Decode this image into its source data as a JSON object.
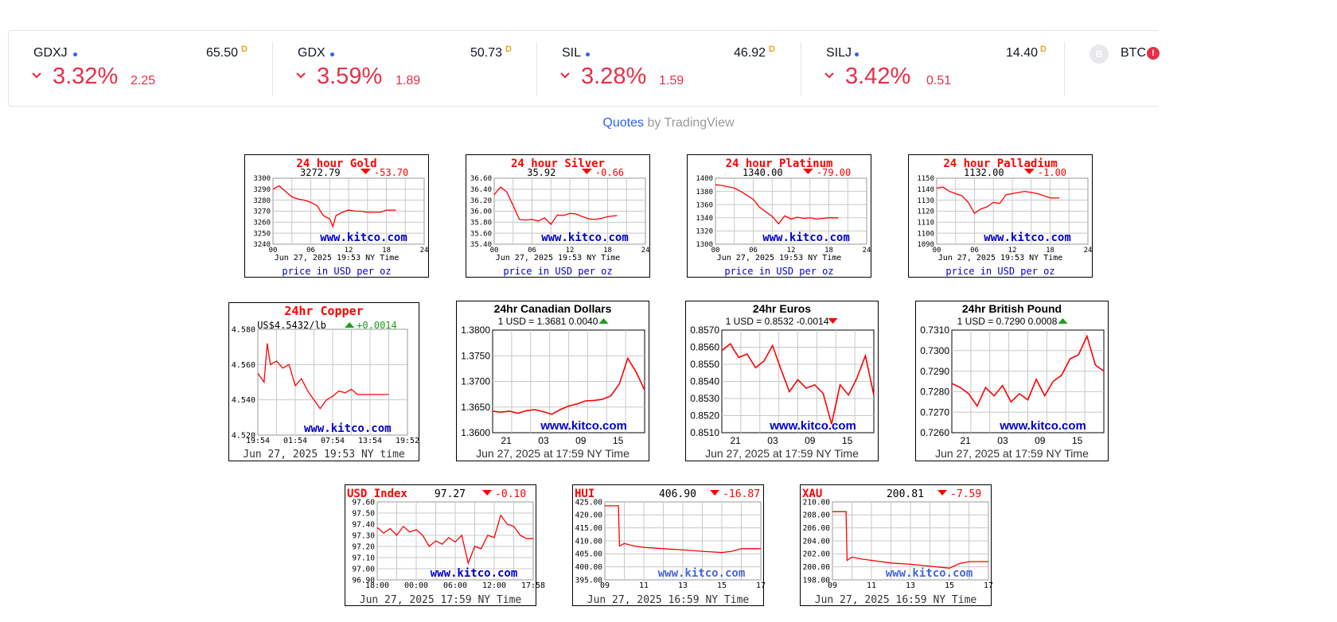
{
  "ticker": [
    {
      "symbol": "GDXJ",
      "price": "65.50",
      "flag": "D",
      "percent": "3.32%",
      "change": "2.25"
    },
    {
      "symbol": "GDX",
      "price": "50.73",
      "flag": "D",
      "percent": "3.59%",
      "change": "1.89"
    },
    {
      "symbol": "SIL",
      "price": "46.92",
      "flag": "D",
      "percent": "3.28%",
      "change": "1.59"
    },
    {
      "symbol": "SILJ",
      "price": "14.40",
      "flag": "D",
      "percent": "3.42%",
      "change": "0.51"
    },
    {
      "symbol": "BTC",
      "logo_letter": "B",
      "alert": "!"
    }
  ],
  "credit": {
    "link": "Quotes",
    "suffix": " by TradingView"
  },
  "colors": {
    "down": "#e53048",
    "line": "#ff0000",
    "watermark": "#0000cc",
    "tv_blue": "#2962ff"
  },
  "charts": [
    {
      "style": "kitco_metal",
      "title": "24 hour Gold",
      "price": "3272.79",
      "dir": "down",
      "delta": "-53.70",
      "y_ticks": [
        "3300",
        "3290",
        "3280",
        "3270",
        "3260",
        "3250",
        "3240"
      ],
      "x_ticks": [
        "00",
        "06",
        "12",
        "18",
        "24"
      ],
      "watermark": "www.kitco.com",
      "date_line": "Jun 27, 2025 19:53 NY Time",
      "footer": "price in USD per oz"
    },
    {
      "style": "kitco_metal",
      "title": "24 hour Silver",
      "price": "35.92",
      "dir": "down",
      "delta": "-0.66",
      "y_ticks": [
        "36.60",
        "36.40",
        "36.20",
        "36.00",
        "35.80",
        "35.60",
        "35.40"
      ],
      "x_ticks": [
        "00",
        "06",
        "12",
        "18",
        "24"
      ],
      "watermark": "www.kitco.com",
      "date_line": "Jun 27, 2025 19:53 NY Time",
      "footer": "price in USD per oz"
    },
    {
      "style": "kitco_metal",
      "title": "24 hour Platinum",
      "price": "1340.00",
      "dir": "down",
      "delta": "-79.00",
      "y_ticks": [
        "1400",
        "1380",
        "1360",
        "1340",
        "1320",
        "1300"
      ],
      "x_ticks": [
        "00",
        "06",
        "12",
        "18",
        "24"
      ],
      "watermark": "www.kitco.com",
      "date_line": "Jun 27, 2025 19:53 NY Time",
      "footer": "price in USD per oz"
    },
    {
      "style": "kitco_metal",
      "title": "24 hour Palladium",
      "price": "1132.00",
      "dir": "down",
      "delta": "-1.00",
      "y_ticks": [
        "1150",
        "1140",
        "1130",
        "1120",
        "1110",
        "1100",
        "1090"
      ],
      "x_ticks": [
        "00",
        "06",
        "12",
        "18",
        "24"
      ],
      "watermark": "www.kitco.com",
      "date_line": "Jun 27, 2025 19:53 NY Time",
      "footer": "price in USD per oz"
    },
    {
      "style": "kitco_copper",
      "title": "24hr Copper",
      "price": "US$4.5432/lb",
      "dir": "up",
      "delta": "+0.0014",
      "y_ticks": [
        "4.580",
        "4.560",
        "4.540",
        "4.520"
      ],
      "x_ticks": [
        "19:54",
        "01:54",
        "07:54",
        "13:54",
        "19:52"
      ],
      "watermark": "www.kitco.com",
      "date_line": "Jun 27, 2025 19:53 NY time"
    },
    {
      "style": "kitco_fx",
      "title": "24hr Canadian Dollars",
      "quote": "1 USD = 1.3681  0.0040",
      "dir": "up",
      "y_ticks": [
        "1.3800",
        "1.3750",
        "1.3700",
        "1.3650",
        "1.3600"
      ],
      "x_ticks": [
        "21",
        "03",
        "09",
        "15"
      ],
      "watermark": "www.kitco.com",
      "date_line": "Jun 27, 2025 at 17:59 NY Time"
    },
    {
      "style": "kitco_fx",
      "title": "24hr Euros",
      "quote": "1 USD = 0.8532  -0.0014",
      "dir": "down",
      "y_ticks": [
        "0.8570",
        "0.8560",
        "0.8550",
        "0.8540",
        "0.8530",
        "0.8520",
        "0.8510"
      ],
      "x_ticks": [
        "21",
        "03",
        "09",
        "15"
      ],
      "watermark": "www.kitco.com",
      "date_line": "Jun 27, 2025 at 17:59 NY Time"
    },
    {
      "style": "kitco_fx",
      "title": "24hr British Pound",
      "quote": "1 USD = 0.7290  0.0008",
      "dir": "up",
      "y_ticks": [
        "0.7310",
        "0.7300",
        "0.7290",
        "0.7280",
        "0.7270",
        "0.7260"
      ],
      "x_ticks": [
        "21",
        "03",
        "09",
        "15"
      ],
      "watermark": "www.kitco.com",
      "date_line": "Jun 27, 2025 at 17:59 NY Time"
    },
    {
      "style": "kitco_index",
      "title": "USD Index",
      "price": "97.27",
      "dir": "down",
      "delta": "-0.10",
      "y_ticks": [
        "97.60",
        "97.50",
        "97.40",
        "97.30",
        "97.20",
        "97.10",
        "97.00",
        "96.90"
      ],
      "x_ticks": [
        "18:00",
        "00:00",
        "06:00",
        "12:00",
        "17:58"
      ],
      "watermark": "www.kitco.com",
      "date_line": "Jun 27, 2025 17:59 NY Time"
    },
    {
      "style": "kitco_index",
      "title": "HUI",
      "price": "406.90",
      "dir": "down",
      "delta": "-16.87",
      "y_ticks": [
        "425.00",
        "420.00",
        "415.00",
        "410.00",
        "405.00",
        "400.00",
        "395.00"
      ],
      "x_ticks": [
        "09",
        "11",
        "13",
        "15",
        "17"
      ],
      "watermark": "www.kitco.com",
      "date_line": "Jun 27, 2025 16:59 NY Time"
    },
    {
      "style": "kitco_index",
      "title": "XAU",
      "price": "200.81",
      "dir": "down",
      "delta": "-7.59",
      "y_ticks": [
        "210.00",
        "208.00",
        "206.00",
        "204.00",
        "202.00",
        "200.00",
        "198.00"
      ],
      "x_ticks": [
        "09",
        "11",
        "13",
        "15",
        "17"
      ],
      "watermark": "www.kitco.com",
      "date_line": "Jun 27, 2025 16:59 NY Time"
    }
  ],
  "chart_data": [
    {
      "type": "line",
      "title": "24 hour Gold",
      "ylim": [
        3240,
        3300
      ],
      "xlim": [
        0,
        24
      ],
      "x": [
        0,
        1,
        2,
        3,
        4,
        5,
        6,
        7,
        8,
        9,
        9.5,
        10,
        11,
        12,
        13,
        14,
        15,
        16,
        17,
        18,
        19.5
      ],
      "values": [
        3290,
        3293,
        3288,
        3283,
        3281,
        3280,
        3278,
        3275,
        3266,
        3263,
        3256,
        3266,
        3269,
        3271,
        3270,
        3270,
        3269,
        3269,
        3269,
        3271,
        3271
      ]
    },
    {
      "type": "line",
      "title": "24 hour Silver",
      "ylim": [
        35.4,
        36.6
      ],
      "xlim": [
        0,
        24
      ],
      "x": [
        0,
        1,
        2,
        3,
        4,
        5,
        6,
        7,
        8,
        9,
        10,
        11,
        12,
        13,
        14,
        15,
        16,
        17,
        18,
        19.5
      ],
      "values": [
        36.3,
        36.44,
        36.35,
        36.1,
        35.85,
        35.84,
        35.85,
        35.82,
        35.88,
        35.76,
        35.93,
        35.92,
        35.96,
        35.95,
        35.9,
        35.86,
        35.85,
        35.87,
        35.9,
        35.92
      ]
    },
    {
      "type": "line",
      "title": "24 hour Platinum",
      "ylim": [
        1300,
        1400
      ],
      "xlim": [
        0,
        24
      ],
      "x": [
        0,
        1,
        2,
        3,
        4,
        5,
        6,
        7,
        8,
        9,
        10,
        11,
        12,
        13,
        14,
        15,
        16,
        17,
        18,
        19.5
      ],
      "values": [
        1390,
        1389,
        1387,
        1385,
        1380,
        1374,
        1368,
        1356,
        1349,
        1342,
        1331,
        1343,
        1338,
        1341,
        1339,
        1340,
        1338,
        1339,
        1340,
        1340
      ]
    },
    {
      "type": "line",
      "title": "24 hour Palladium",
      "ylim": [
        1090,
        1150
      ],
      "xlim": [
        0,
        24
      ],
      "x": [
        0,
        1,
        2,
        3,
        4,
        5,
        6,
        7,
        8,
        9,
        10,
        11,
        12,
        13,
        14,
        15,
        16,
        17,
        18,
        19.5
      ],
      "values": [
        1141,
        1142,
        1138,
        1136,
        1134,
        1128,
        1118,
        1122,
        1124,
        1128,
        1127,
        1135,
        1136,
        1137,
        1138,
        1137,
        1136,
        1134,
        1132,
        1132
      ]
    },
    {
      "type": "line",
      "title": "24hr Copper",
      "ylim": [
        4.52,
        4.58
      ],
      "xlim": [
        0,
        24
      ],
      "x": [
        0,
        1,
        1.5,
        2,
        3,
        4,
        5,
        6,
        7,
        8,
        9,
        10,
        11,
        12,
        13,
        14,
        15,
        16,
        17,
        18,
        19,
        20,
        21
      ],
      "values": [
        4.555,
        4.55,
        4.572,
        4.56,
        4.562,
        4.558,
        4.56,
        4.548,
        4.552,
        4.545,
        4.54,
        4.535,
        4.54,
        4.542,
        4.545,
        4.544,
        4.546,
        4.543,
        4.543,
        4.543,
        4.543,
        4.543,
        4.543
      ]
    },
    {
      "type": "line",
      "title": "24hr Canadian Dollars",
      "ylim": [
        1.36,
        1.38
      ],
      "xlim": [
        18,
        36
      ],
      "x": [
        18,
        19,
        20,
        21,
        22,
        23,
        24,
        25,
        26,
        27,
        28,
        29,
        30,
        31,
        32,
        33,
        34,
        35,
        36
      ],
      "values": [
        1.3642,
        1.364,
        1.3642,
        1.3638,
        1.3643,
        1.3645,
        1.3641,
        1.3636,
        1.3645,
        1.3652,
        1.3656,
        1.3662,
        1.3663,
        1.3665,
        1.3672,
        1.3695,
        1.3745,
        1.3718,
        1.3683
      ]
    },
    {
      "type": "line",
      "title": "24hr Euros",
      "ylim": [
        0.851,
        0.857
      ],
      "xlim": [
        18,
        36
      ],
      "x": [
        18,
        19,
        20,
        21,
        22,
        23,
        24,
        25,
        26,
        27,
        28,
        29,
        30,
        31,
        32,
        33,
        34,
        35,
        36
      ],
      "values": [
        0.8558,
        0.8562,
        0.8554,
        0.8556,
        0.8548,
        0.8552,
        0.8561,
        0.8547,
        0.8534,
        0.8541,
        0.8536,
        0.8538,
        0.8533,
        0.8515,
        0.8538,
        0.8532,
        0.8542,
        0.8555,
        0.8532
      ]
    },
    {
      "type": "line",
      "title": "24hr British Pound",
      "ylim": [
        0.726,
        0.731
      ],
      "xlim": [
        18,
        36
      ],
      "x": [
        18,
        19,
        20,
        21,
        22,
        23,
        24,
        25,
        26,
        27,
        28,
        29,
        30,
        31,
        32,
        33,
        34,
        35,
        36
      ],
      "values": [
        0.7284,
        0.7282,
        0.7279,
        0.7273,
        0.7282,
        0.7278,
        0.7283,
        0.7275,
        0.7279,
        0.7276,
        0.7286,
        0.7278,
        0.7285,
        0.7288,
        0.7296,
        0.7298,
        0.7307,
        0.7293,
        0.729
      ]
    },
    {
      "type": "line",
      "title": "USD Index",
      "ylim": [
        96.9,
        97.6
      ],
      "xlim": [
        0,
        24
      ],
      "x": [
        0,
        1,
        2,
        3,
        4,
        5,
        6,
        7,
        8,
        9,
        10,
        11,
        12,
        13,
        14,
        15,
        16,
        17,
        18,
        19,
        20,
        21,
        22,
        23,
        24
      ],
      "values": [
        97.37,
        97.32,
        97.36,
        97.3,
        97.38,
        97.33,
        97.35,
        97.3,
        97.2,
        97.25,
        97.22,
        97.28,
        97.24,
        97.3,
        97.05,
        97.2,
        97.18,
        97.3,
        97.28,
        97.48,
        97.4,
        97.38,
        97.3,
        97.27,
        97.27
      ]
    },
    {
      "type": "line",
      "title": "HUI",
      "ylim": [
        395,
        425
      ],
      "xlim": [
        9,
        17
      ],
      "x": [
        9,
        9.7,
        9.75,
        10,
        10.5,
        11,
        12,
        13,
        14,
        15,
        15.5,
        16,
        17
      ],
      "values": [
        423.5,
        423.5,
        408,
        409,
        408,
        407.5,
        407,
        406.5,
        406,
        405.5,
        406,
        407,
        407
      ]
    },
    {
      "type": "line",
      "title": "XAU",
      "ylim": [
        198,
        210
      ],
      "xlim": [
        9,
        17
      ],
      "x": [
        9,
        9.7,
        9.75,
        10,
        10.5,
        11,
        12,
        13,
        14,
        15,
        15.5,
        16,
        17
      ],
      "values": [
        208.5,
        208.5,
        201,
        201.5,
        201.2,
        201,
        200.6,
        200.4,
        200.1,
        199.8,
        200.5,
        200.8,
        200.8
      ]
    }
  ]
}
